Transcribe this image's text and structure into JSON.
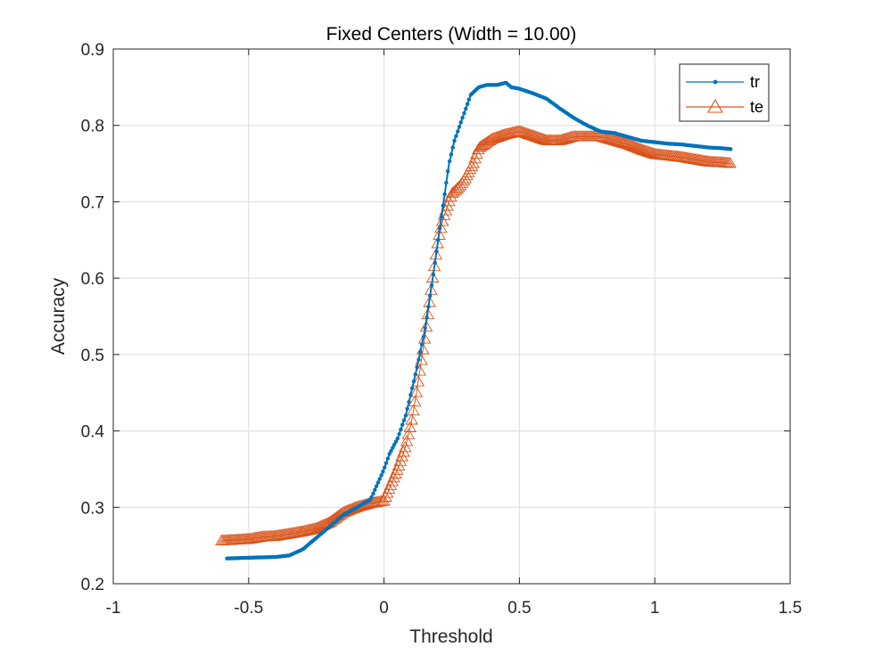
{
  "chart_data": {
    "type": "line",
    "title": "Fixed Centers (Width = 10.00)",
    "xlabel": "Threshold",
    "ylabel": "Accuracy",
    "xlim": [
      -1,
      1.5
    ],
    "ylim": [
      0.2,
      0.9
    ],
    "xticks": [
      -1,
      -0.5,
      0,
      0.5,
      1,
      1.5
    ],
    "xtick_labels": [
      "-1",
      "-0.5",
      "0",
      "0.5",
      "1",
      "1.5"
    ],
    "yticks": [
      0.2,
      0.3,
      0.4,
      0.5,
      0.6,
      0.7,
      0.8,
      0.9
    ],
    "ytick_labels": [
      "0.2",
      "0.3",
      "0.4",
      "0.5",
      "0.6",
      "0.7",
      "0.8",
      "0.9"
    ],
    "grid": true,
    "legend_position": "top-right",
    "series": [
      {
        "name": "tr",
        "color": "#0072BD",
        "marker": "dot",
        "x": [
          -0.58,
          -0.5,
          -0.4,
          -0.35,
          -0.3,
          -0.25,
          -0.2,
          -0.15,
          -0.1,
          -0.05,
          0.0,
          0.02,
          0.05,
          0.08,
          0.1,
          0.12,
          0.15,
          0.18,
          0.2,
          0.22,
          0.24,
          0.26,
          0.28,
          0.3,
          0.32,
          0.35,
          0.38,
          0.42,
          0.45,
          0.47,
          0.5,
          0.55,
          0.6,
          0.65,
          0.7,
          0.75,
          0.8,
          0.85,
          0.9,
          0.95,
          1.0,
          1.05,
          1.1,
          1.15,
          1.2,
          1.25,
          1.28
        ],
        "y": [
          0.233,
          0.234,
          0.235,
          0.237,
          0.245,
          0.26,
          0.275,
          0.29,
          0.3,
          0.31,
          0.35,
          0.37,
          0.39,
          0.42,
          0.45,
          0.48,
          0.53,
          0.6,
          0.65,
          0.7,
          0.75,
          0.78,
          0.8,
          0.82,
          0.84,
          0.85,
          0.853,
          0.853,
          0.856,
          0.85,
          0.848,
          0.842,
          0.835,
          0.822,
          0.81,
          0.8,
          0.792,
          0.79,
          0.785,
          0.78,
          0.778,
          0.776,
          0.775,
          0.773,
          0.771,
          0.77,
          0.769
        ]
      },
      {
        "name": "te",
        "color": "#D95319",
        "marker": "triangle",
        "x": [
          -0.6,
          -0.5,
          -0.45,
          -0.4,
          -0.35,
          -0.3,
          -0.25,
          -0.2,
          -0.15,
          -0.1,
          -0.05,
          0.0,
          0.02,
          0.05,
          0.08,
          0.1,
          0.12,
          0.15,
          0.18,
          0.2,
          0.22,
          0.25,
          0.28,
          0.3,
          0.33,
          0.35,
          0.4,
          0.45,
          0.5,
          0.55,
          0.6,
          0.65,
          0.7,
          0.75,
          0.8,
          0.85,
          0.9,
          0.95,
          1.0,
          1.05,
          1.1,
          1.15,
          1.2,
          1.25,
          1.28
        ],
        "y": [
          0.256,
          0.258,
          0.261,
          0.262,
          0.265,
          0.268,
          0.272,
          0.28,
          0.293,
          0.3,
          0.305,
          0.308,
          0.325,
          0.35,
          0.38,
          0.41,
          0.45,
          0.52,
          0.6,
          0.65,
          0.68,
          0.71,
          0.72,
          0.73,
          0.75,
          0.77,
          0.782,
          0.788,
          0.792,
          0.786,
          0.78,
          0.78,
          0.785,
          0.785,
          0.785,
          0.78,
          0.775,
          0.768,
          0.762,
          0.76,
          0.758,
          0.755,
          0.752,
          0.751,
          0.75
        ]
      }
    ]
  }
}
